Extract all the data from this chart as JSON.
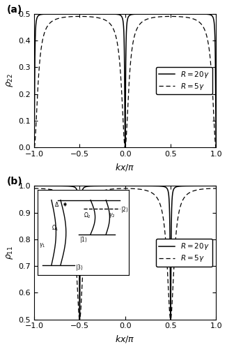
{
  "panel_a": {
    "label": "(a)",
    "ylabel": "$\\rho_{22}$",
    "xlabel": "$kx/\\pi$",
    "xlim": [
      -1.0,
      1.0
    ],
    "ylim": [
      0.0,
      0.5
    ],
    "yticks": [
      0.0,
      0.1,
      0.2,
      0.3,
      0.4,
      0.5
    ],
    "xticks": [
      -1.0,
      -0.5,
      0.0,
      0.5,
      1.0
    ]
  },
  "panel_b": {
    "label": "(b)",
    "ylabel": "$\\rho_{11}$",
    "xlabel": "$kx/\\pi$",
    "xlim": [
      -1.0,
      1.0
    ],
    "ylim": [
      0.5,
      1.0
    ],
    "yticks": [
      0.5,
      0.6,
      0.7,
      0.8,
      0.9,
      1.0
    ],
    "xticks": [
      -1.0,
      -0.5,
      0.0,
      0.5,
      1.0
    ]
  },
  "legend_labels": [
    "$R = 20\\gamma$",
    "$R = 5\\gamma$"
  ],
  "line_color": "#000000",
  "background_color": "#ffffff",
  "figsize": [
    3.26,
    5.0
  ],
  "dpi": 100
}
